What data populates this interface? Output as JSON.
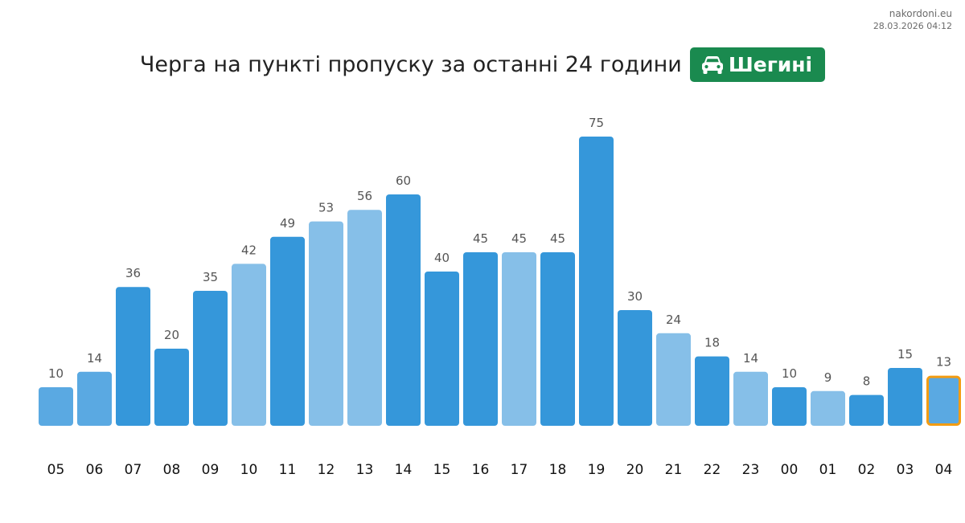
{
  "meta": {
    "site": "nakordoni.eu",
    "timestamp": "28.03.2026 04:12"
  },
  "header": {
    "title": "Черга на пункті пропуску за останні 24 години",
    "badge_label": "Шегині",
    "badge_icon": "car-icon"
  },
  "colors": {
    "badge": "#1a8a4f",
    "bar_dark": "#3597da",
    "bar_mid": "#5aa9e2",
    "bar_light": "#86bfe8",
    "highlight_outline": "#f39c12",
    "value_label": "#555555",
    "tick_label": "#111111"
  },
  "chart_data": {
    "type": "bar",
    "categories": [
      "05",
      "06",
      "07",
      "08",
      "09",
      "10",
      "11",
      "12",
      "13",
      "14",
      "15",
      "16",
      "17",
      "18",
      "19",
      "20",
      "21",
      "22",
      "23",
      "00",
      "01",
      "02",
      "03",
      "04"
    ],
    "values": [
      10,
      14,
      36,
      20,
      35,
      42,
      49,
      53,
      56,
      60,
      40,
      45,
      45,
      45,
      75,
      30,
      24,
      18,
      14,
      10,
      9,
      8,
      15,
      13
    ],
    "bar_shades": [
      "mid",
      "mid",
      "dark",
      "dark",
      "dark",
      "light",
      "dark",
      "light",
      "light",
      "dark",
      "dark",
      "dark",
      "light",
      "dark",
      "dark",
      "dark",
      "light",
      "dark",
      "light",
      "dark",
      "light",
      "dark",
      "dark",
      "mid"
    ],
    "highlighted_category": "04",
    "title": "Черга на пункті пропуску за останні 24 години",
    "xlabel": "",
    "ylabel": "",
    "ylim": [
      0,
      75
    ],
    "grid": false,
    "legend": "none"
  }
}
